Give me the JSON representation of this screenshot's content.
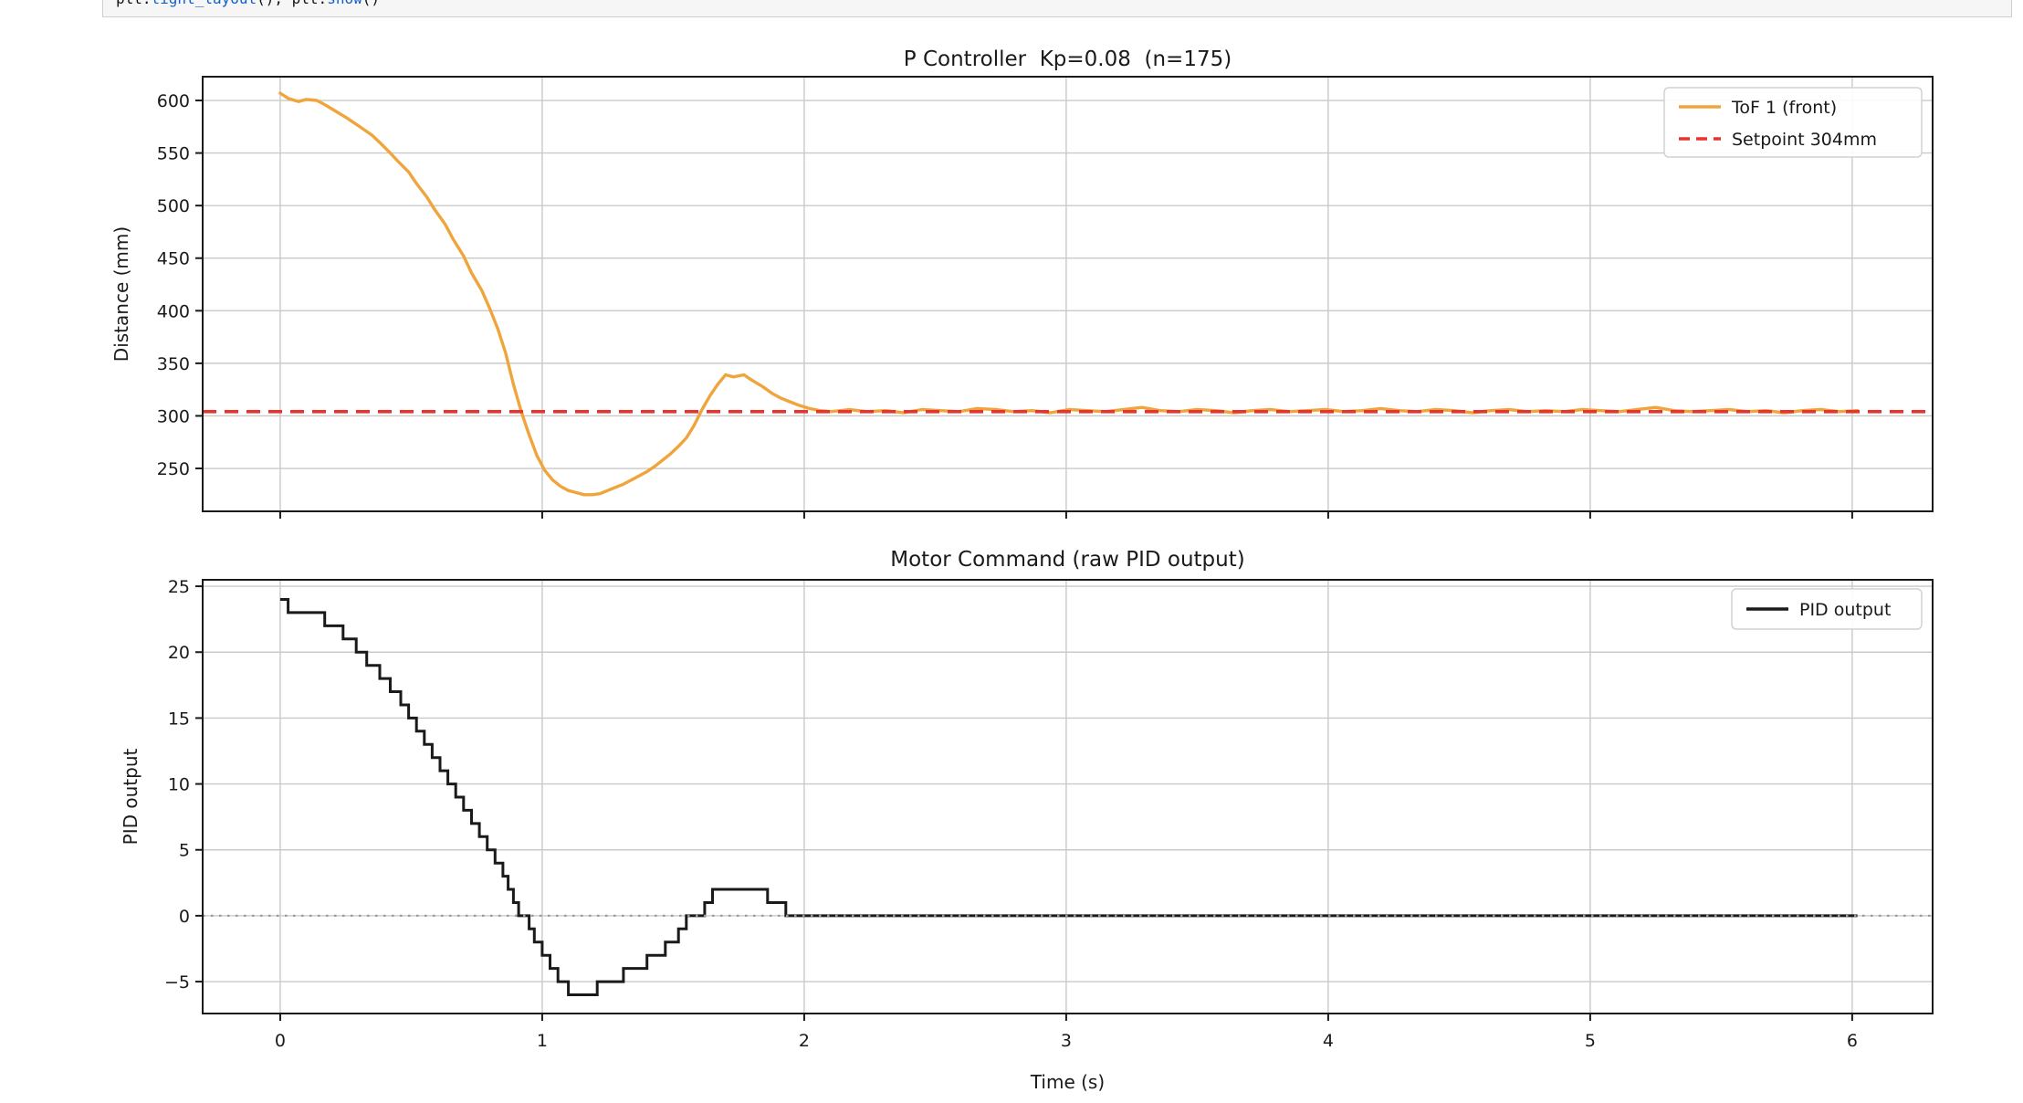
{
  "code_cell": {
    "tokens": [
      {
        "t": "plt.",
        "c": "k"
      },
      {
        "t": "tight_layout",
        "c": "fn"
      },
      {
        "t": "(); plt.",
        "c": "k"
      },
      {
        "t": "show",
        "c": "fn"
      },
      {
        "t": "()",
        "c": "k"
      }
    ]
  },
  "colors": {
    "tof_orange": "#f0a53c",
    "setpoint_red": "#e6342e",
    "pid_black": "#1a1a1a",
    "grid": "#c9c9c9",
    "spine": "#1a1a1a",
    "zero_dotted": "#9a9a9a",
    "legend_border": "#d2d2d2",
    "legend_bg": "#ffffff"
  },
  "chart_data": [
    {
      "type": "line",
      "title": "P Controller  Kp=0.08  (n=175)",
      "xlabel": "",
      "ylabel": "Distance (mm)",
      "xlim": [
        -0.296,
        6.307
      ],
      "ylim": [
        209.2,
        622.6
      ],
      "xticks": [
        0,
        1,
        2,
        3,
        4,
        5,
        6
      ],
      "yticks": [
        250,
        300,
        350,
        400,
        450,
        500,
        550,
        600
      ],
      "show_xtick_labels": false,
      "grid": true,
      "legend_position": "upper right",
      "legend": [
        "ToF 1 (front)",
        "Setpoint 304mm"
      ],
      "series": [
        {
          "name": "ToF 1 (front)",
          "kind": "line",
          "color": "#f0a53c",
          "style": "solid",
          "points": [
            [
              0.0,
              607
            ],
            [
              0.03,
              602
            ],
            [
              0.07,
              599
            ],
            [
              0.1,
              601
            ],
            [
              0.14,
              600
            ],
            [
              0.17,
              596
            ],
            [
              0.21,
              590
            ],
            [
              0.25,
              584
            ],
            [
              0.28,
              579
            ],
            [
              0.31,
              574
            ],
            [
              0.35,
              567
            ],
            [
              0.38,
              560
            ],
            [
              0.42,
              550
            ],
            [
              0.45,
              542
            ],
            [
              0.49,
              532
            ],
            [
              0.52,
              521
            ],
            [
              0.56,
              508
            ],
            [
              0.59,
              496
            ],
            [
              0.63,
              482
            ],
            [
              0.66,
              468
            ],
            [
              0.7,
              452
            ],
            [
              0.73,
              436
            ],
            [
              0.77,
              419
            ],
            [
              0.8,
              402
            ],
            [
              0.83,
              383
            ],
            [
              0.86,
              360
            ],
            [
              0.89,
              330
            ],
            [
              0.92,
              304
            ],
            [
              0.95,
              282
            ],
            [
              0.98,
              262
            ],
            [
              1.01,
              248
            ],
            [
              1.04,
              239
            ],
            [
              1.07,
              233
            ],
            [
              1.1,
              229
            ],
            [
              1.13,
              227
            ],
            [
              1.16,
              225
            ],
            [
              1.19,
              225
            ],
            [
              1.22,
              226
            ],
            [
              1.25,
              229
            ],
            [
              1.28,
              232
            ],
            [
              1.31,
              235
            ],
            [
              1.34,
              239
            ],
            [
              1.37,
              243
            ],
            [
              1.4,
              247
            ],
            [
              1.43,
              252
            ],
            [
              1.46,
              258
            ],
            [
              1.49,
              264
            ],
            [
              1.52,
              271
            ],
            [
              1.55,
              279
            ],
            [
              1.58,
              291
            ],
            [
              1.61,
              306
            ],
            [
              1.64,
              319
            ],
            [
              1.67,
              330
            ],
            [
              1.7,
              339
            ],
            [
              1.73,
              337
            ],
            [
              1.77,
              339
            ],
            [
              1.8,
              334
            ],
            [
              1.84,
              328
            ],
            [
              1.88,
              321
            ],
            [
              1.91,
              317
            ],
            [
              1.95,
              313
            ],
            [
              1.98,
              310
            ],
            [
              2.02,
              307
            ],
            [
              2.06,
              305
            ],
            [
              2.1,
              304
            ],
            [
              2.14,
              305
            ],
            [
              2.17,
              306
            ],
            [
              2.24,
              304
            ],
            [
              2.31,
              305
            ],
            [
              2.38,
              303
            ],
            [
              2.45,
              306
            ],
            [
              2.52,
              305
            ],
            [
              2.59,
              304
            ],
            [
              2.66,
              307
            ],
            [
              2.73,
              306
            ],
            [
              2.8,
              304
            ],
            [
              2.87,
              305
            ],
            [
              2.94,
              303
            ],
            [
              3.01,
              306
            ],
            [
              3.08,
              305
            ],
            [
              3.15,
              304
            ],
            [
              3.22,
              306
            ],
            [
              3.29,
              308
            ],
            [
              3.36,
              305
            ],
            [
              3.43,
              304
            ],
            [
              3.5,
              306
            ],
            [
              3.57,
              305
            ],
            [
              3.64,
              303
            ],
            [
              3.71,
              305
            ],
            [
              3.78,
              306
            ],
            [
              3.85,
              304
            ],
            [
              3.92,
              305
            ],
            [
              3.99,
              306
            ],
            [
              4.06,
              304
            ],
            [
              4.13,
              305
            ],
            [
              4.2,
              307
            ],
            [
              4.27,
              305
            ],
            [
              4.34,
              304
            ],
            [
              4.41,
              306
            ],
            [
              4.48,
              305
            ],
            [
              4.55,
              303
            ],
            [
              4.62,
              305
            ],
            [
              4.69,
              306
            ],
            [
              4.76,
              304
            ],
            [
              4.83,
              305
            ],
            [
              4.9,
              304
            ],
            [
              4.97,
              306
            ],
            [
              5.04,
              305
            ],
            [
              5.11,
              304
            ],
            [
              5.18,
              306
            ],
            [
              5.25,
              308
            ],
            [
              5.32,
              305
            ],
            [
              5.39,
              304
            ],
            [
              5.46,
              305
            ],
            [
              5.53,
              306
            ],
            [
              5.6,
              304
            ],
            [
              5.67,
              305
            ],
            [
              5.74,
              303
            ],
            [
              5.81,
              305
            ],
            [
              5.88,
              306
            ],
            [
              5.95,
              304
            ],
            [
              6.02,
              305
            ]
          ]
        },
        {
          "name": "Setpoint 304mm",
          "kind": "hline",
          "color": "#e6342e",
          "style": "dashed",
          "y": 304
        }
      ]
    },
    {
      "type": "step",
      "title": "Motor Command (raw PID output)",
      "xlabel": "Time (s)",
      "ylabel": "PID output",
      "xlim": [
        -0.296,
        6.307
      ],
      "ylim": [
        -7.42,
        25.49
      ],
      "xticks": [
        0,
        1,
        2,
        3,
        4,
        5,
        6
      ],
      "yticks": [
        -5,
        0,
        5,
        10,
        15,
        20,
        25
      ],
      "show_xtick_labels": true,
      "grid": true,
      "legend_position": "upper right",
      "legend": [
        "PID output"
      ],
      "series": [
        {
          "name": "PID output",
          "kind": "step-post",
          "color": "#1a1a1a",
          "style": "solid",
          "end_t": 6.02,
          "points": [
            [
              0.0,
              24
            ],
            [
              0.03,
              23
            ],
            [
              0.17,
              22
            ],
            [
              0.24,
              21
            ],
            [
              0.29,
              20
            ],
            [
              0.33,
              19
            ],
            [
              0.38,
              18
            ],
            [
              0.42,
              17
            ],
            [
              0.46,
              16
            ],
            [
              0.49,
              15
            ],
            [
              0.52,
              14
            ],
            [
              0.55,
              13
            ],
            [
              0.58,
              12
            ],
            [
              0.61,
              11
            ],
            [
              0.64,
              10
            ],
            [
              0.67,
              9
            ],
            [
              0.7,
              8
            ],
            [
              0.73,
              7
            ],
            [
              0.76,
              6
            ],
            [
              0.79,
              5
            ],
            [
              0.82,
              4
            ],
            [
              0.85,
              3
            ],
            [
              0.87,
              2
            ],
            [
              0.89,
              1
            ],
            [
              0.91,
              0
            ],
            [
              0.95,
              -1
            ],
            [
              0.97,
              -2
            ],
            [
              1.0,
              -3
            ],
            [
              1.03,
              -4
            ],
            [
              1.06,
              -5
            ],
            [
              1.1,
              -6
            ],
            [
              1.21,
              -5
            ],
            [
              1.31,
              -4
            ],
            [
              1.4,
              -3
            ],
            [
              1.47,
              -2
            ],
            [
              1.52,
              -1
            ],
            [
              1.55,
              0
            ],
            [
              1.62,
              1
            ],
            [
              1.65,
              2
            ],
            [
              1.86,
              1
            ],
            [
              1.93,
              0
            ]
          ]
        },
        {
          "name": "zero-reference",
          "kind": "hline",
          "color": "#9a9a9a",
          "style": "dotted",
          "y": 0
        }
      ]
    }
  ]
}
